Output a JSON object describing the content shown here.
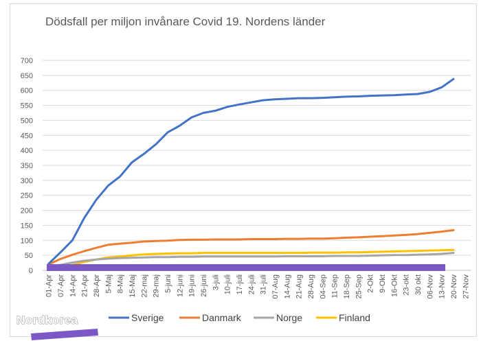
{
  "chart_data": {
    "type": "line",
    "title": "Dödsfall per miljon invånare Covid 19. Nordens länder",
    "xlabel": "",
    "ylabel": "",
    "ylim": [
      0,
      700
    ],
    "yticks": [
      0,
      50,
      100,
      150,
      200,
      250,
      300,
      350,
      400,
      450,
      500,
      550,
      600,
      650,
      700
    ],
    "grid": true,
    "legend_position": "bottom",
    "categories": [
      "01-Apr",
      "07-Apr",
      "14-Apr",
      "21-Apr",
      "28-Apr",
      "5-Maj",
      "8-Maj",
      "15-Maj",
      "22-maj",
      "29-maj",
      "5-juni",
      "12-juni",
      "19-juni",
      "26-juni",
      "3-juli",
      "10-juli",
      "17-juli",
      "24-juli",
      "31-juli",
      "07-Aug",
      "14-Aug",
      "21-Aug",
      "28-Aug",
      "04-Sep",
      "11-Sep",
      "18-Sep",
      "25-Sep",
      "2-Okt",
      "9-Okt",
      "16-Okt",
      "23-okt",
      "30 okt",
      "06-Nov",
      "13-Nov",
      "20-Nov",
      "27-Nov"
    ],
    "series": [
      {
        "name": "Sverige",
        "color": "#4472c4",
        "values": [
          22,
          60,
          100,
          175,
          235,
          282,
          313,
          360,
          388,
          420,
          460,
          482,
          510,
          525,
          532,
          545,
          553,
          560,
          567,
          570,
          572,
          574,
          574,
          575,
          577,
          579,
          580,
          582,
          583,
          584,
          586,
          588,
          595,
          610,
          638,
          null
        ]
      },
      {
        "name": "Danmark",
        "color": "#ed7d31",
        "values": [
          20,
          38,
          52,
          64,
          75,
          85,
          89,
          92,
          96,
          98,
          99,
          101,
          102,
          102,
          103,
          103,
          103,
          104,
          104,
          104,
          105,
          105,
          106,
          106,
          107,
          109,
          110,
          112,
          114,
          116,
          118,
          121,
          125,
          129,
          134,
          null
        ]
      },
      {
        "name": "Norge",
        "color": "#a5a5a5",
        "values": [
          10,
          18,
          26,
          32,
          36,
          39,
          41,
          42,
          43,
          44,
          44,
          45,
          45,
          46,
          46,
          46,
          46,
          46,
          46,
          46,
          47,
          47,
          47,
          47,
          48,
          48,
          48,
          49,
          50,
          51,
          51,
          52,
          53,
          55,
          58,
          null
        ]
      },
      {
        "name": "Finland",
        "color": "#ffc000",
        "values": [
          3,
          10,
          18,
          28,
          36,
          43,
          46,
          50,
          53,
          55,
          56,
          57,
          57,
          58,
          58,
          58,
          58,
          58,
          58,
          58,
          58,
          58,
          59,
          59,
          59,
          60,
          60,
          61,
          62,
          63,
          64,
          65,
          66,
          67,
          68,
          null
        ]
      }
    ]
  },
  "overlay": {
    "brand_label": "Nordkorea",
    "bar_color": "#7b57c8"
  }
}
